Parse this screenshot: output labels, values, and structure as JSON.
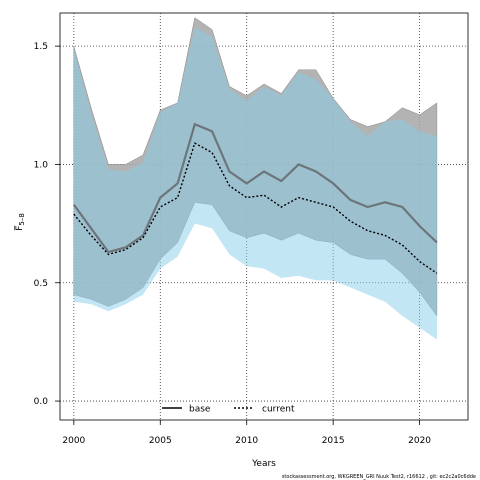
{
  "chart_data": {
    "type": "line",
    "xlabel": "Years",
    "ylabel": "F̅",
    "ylabel_sub": "5–8",
    "xlim": [
      1999.2,
      2022.8
    ],
    "ylim": [
      -0.08,
      1.64
    ],
    "x_ticks": [
      2000,
      2005,
      2010,
      2015,
      2020
    ],
    "y_ticks": [
      0.0,
      0.5,
      1.0,
      1.5
    ],
    "y_tick_labels": [
      "0.0",
      "0.5",
      "1.0",
      "1.5"
    ],
    "grid": true,
    "legend_position": "bottom-center",
    "x": [
      2000,
      2001,
      2002,
      2003,
      2004,
      2005,
      2006,
      2007,
      2008,
      2009,
      2010,
      2011,
      2012,
      2013,
      2014,
      2015,
      2016,
      2017,
      2018,
      2019,
      2020,
      2021
    ],
    "series": [
      {
        "name": "base",
        "color": "#000000",
        "band_color": "#a6a6a6",
        "values": [
          0.83,
          0.73,
          0.63,
          0.65,
          0.7,
          0.86,
          0.92,
          1.17,
          1.14,
          0.97,
          0.92,
          0.97,
          0.93,
          1.0,
          0.97,
          0.92,
          0.85,
          0.82,
          0.84,
          0.82,
          0.74,
          0.67
        ],
        "upper": [
          1.5,
          1.24,
          1.0,
          1.0,
          1.04,
          1.23,
          1.26,
          1.62,
          1.57,
          1.33,
          1.29,
          1.34,
          1.3,
          1.4,
          1.4,
          1.28,
          1.19,
          1.16,
          1.18,
          1.24,
          1.21,
          1.26
        ],
        "lower": [
          0.45,
          0.43,
          0.4,
          0.43,
          0.48,
          0.6,
          0.67,
          0.84,
          0.83,
          0.72,
          0.69,
          0.71,
          0.68,
          0.71,
          0.68,
          0.67,
          0.62,
          0.6,
          0.6,
          0.54,
          0.46,
          0.36
        ]
      },
      {
        "name": "current",
        "color": "#000000",
        "band_color": "#87ceeb",
        "values": [
          0.79,
          0.7,
          0.62,
          0.64,
          0.69,
          0.82,
          0.86,
          1.09,
          1.05,
          0.91,
          0.86,
          0.87,
          0.82,
          0.86,
          0.84,
          0.82,
          0.76,
          0.72,
          0.7,
          0.66,
          0.59,
          0.54
        ],
        "upper": [
          1.49,
          1.22,
          0.98,
          0.97,
          1.01,
          1.22,
          1.26,
          1.58,
          1.54,
          1.32,
          1.27,
          1.33,
          1.29,
          1.39,
          1.36,
          1.28,
          1.18,
          1.12,
          1.18,
          1.19,
          1.14,
          1.12
        ],
        "lower": [
          0.42,
          0.41,
          0.38,
          0.41,
          0.45,
          0.56,
          0.61,
          0.75,
          0.73,
          0.62,
          0.57,
          0.56,
          0.52,
          0.53,
          0.51,
          0.51,
          0.48,
          0.45,
          0.42,
          0.36,
          0.31,
          0.26
        ]
      }
    ]
  },
  "footer": "stockassessment.org, WKGREEN_GRI Nuuk Test2, r16612 , git: ec2c2a0c6dde"
}
